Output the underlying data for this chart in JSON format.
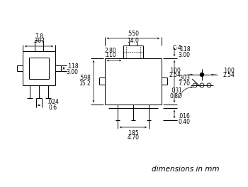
{
  "background_color": "#ffffff",
  "line_color": "#000000",
  "text_color": "#000000",
  "font_size": 5.5,
  "footer_text": "dimensions in mm",
  "footer_fontsize": 7.5
}
